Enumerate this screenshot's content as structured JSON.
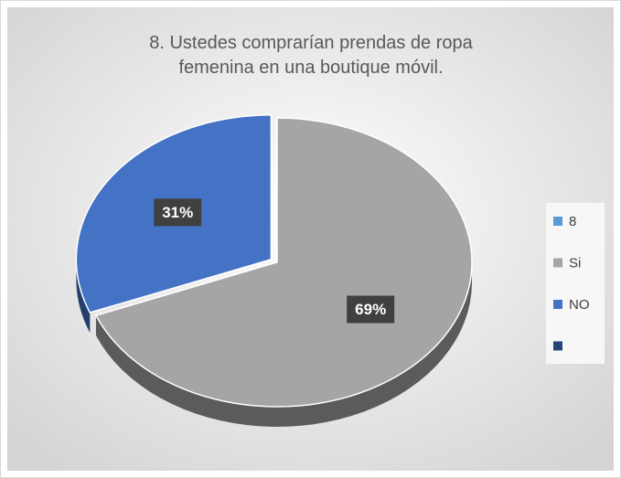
{
  "chart_data": {
    "type": "pie",
    "title": "8. Ustedes comprarían  prendas de ropa femenina  en una boutique  móvil.",
    "categories": [
      "8",
      "Si",
      "NO",
      null
    ],
    "values": [
      null,
      69,
      31,
      null
    ],
    "value_labels": [
      null,
      "69%",
      "31%",
      null
    ],
    "colors": [
      "#5b9bd5",
      "#a5a5a5",
      "#4472c4",
      "#264478"
    ],
    "legend": "right"
  }
}
